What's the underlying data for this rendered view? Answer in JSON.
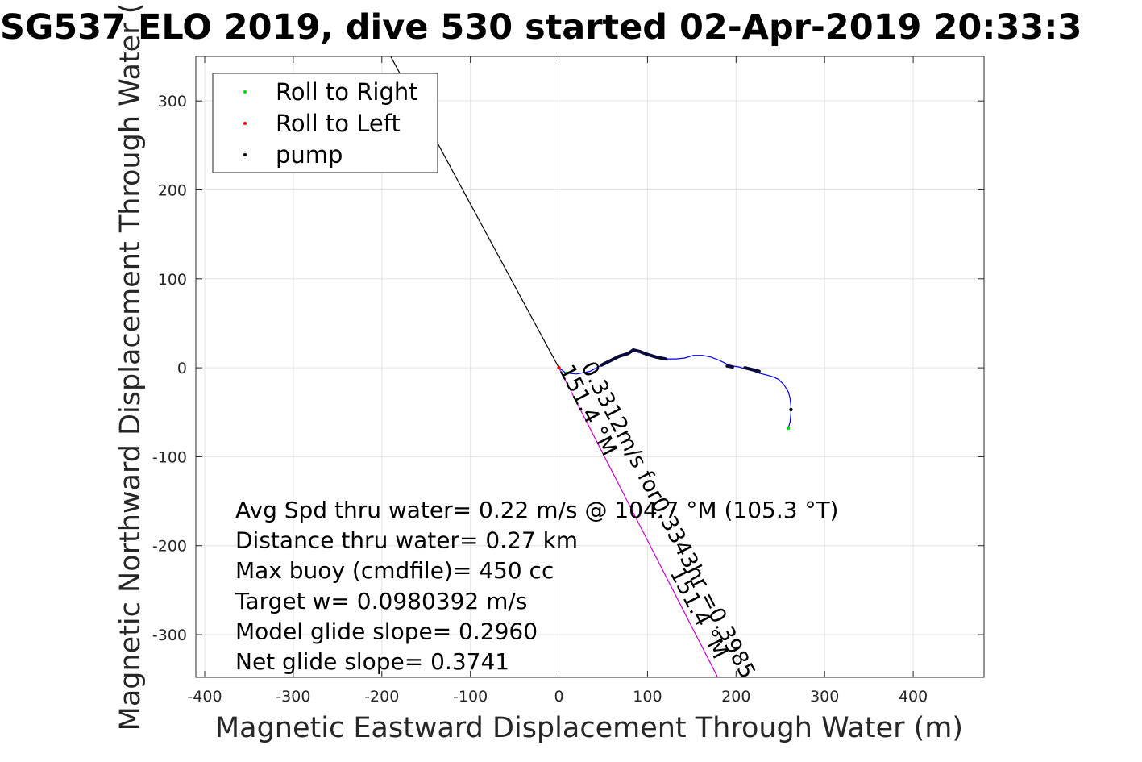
{
  "chart_data": {
    "type": "line",
    "title": "SG537 ELO 2019, dive 530 started 02-Apr-2019 20:33:3",
    "xlabel": "Magnetic Eastward Displacement Through Water (m)",
    "ylabel": "Magnetic Northward Displacement Through Water (",
    "xlim": [
      -410,
      480
    ],
    "ylim": [
      -348,
      350
    ],
    "xticks": [
      -400,
      -300,
      -200,
      -100,
      0,
      100,
      200,
      300,
      400
    ],
    "yticks": [
      -300,
      -200,
      -100,
      0,
      100,
      200,
      300
    ],
    "grid": true,
    "legend": {
      "placement": "top-left",
      "entries": [
        {
          "label": "Roll to Right",
          "color": "#00dd00"
        },
        {
          "label": "Roll to Left",
          "color": "#ff0000"
        },
        {
          "label": "pump",
          "color": "#000000"
        }
      ]
    },
    "series": [
      {
        "role": "heading-line",
        "color": "#000000",
        "x": [
          -190,
          0
        ],
        "y": [
          350,
          0
        ]
      },
      {
        "role": "track",
        "color": "#0000ff",
        "x": [
          0,
          8,
          20,
          35,
          48,
          58,
          68,
          78,
          84,
          92,
          100,
          110,
          120,
          132,
          142,
          152,
          162,
          172,
          182,
          190,
          196,
          203,
          210,
          218,
          226,
          234,
          241,
          248,
          254,
          259,
          261,
          262,
          262,
          261,
          259
        ],
        "y": [
          0,
          -6,
          -7,
          -4,
          3,
          8,
          13,
          16,
          20,
          18,
          15,
          12,
          10,
          10,
          11,
          14,
          14,
          12,
          8,
          4,
          2,
          1,
          -1,
          -3,
          -6,
          -8,
          -10,
          -13,
          -19,
          -27,
          -34,
          -43,
          -51,
          -61,
          -68
        ]
      },
      {
        "role": "current-vector",
        "color": "#cc00cc",
        "x": [
          0,
          221
        ],
        "y": [
          0,
          -429
        ]
      }
    ],
    "pump_segments": [
      {
        "x": [
          48,
          58,
          68,
          78,
          84,
          92,
          100,
          110,
          120
        ],
        "y": [
          3,
          8,
          13,
          16,
          20,
          18,
          15,
          12,
          10
        ]
      },
      {
        "x": [
          190,
          196
        ],
        "y": [
          2,
          1
        ]
      },
      {
        "x": [
          210,
          226
        ],
        "y": [
          0,
          -4
        ]
      }
    ],
    "markers": [
      {
        "series": "Roll to Right",
        "color": "#00dd00",
        "x": 9,
        "y": -6
      },
      {
        "series": "Roll to Right",
        "color": "#00dd00",
        "x": 259,
        "y": -68
      },
      {
        "series": "Roll to Left",
        "color": "#ff0000",
        "x": 0,
        "y": 0
      },
      {
        "series": "pump",
        "color": "#000000",
        "x": 262,
        "y": -47
      }
    ],
    "annotations": [
      {
        "id": "current-label-1",
        "text": "0.3312m/s for0.3343hr =0.3985",
        "x": 12,
        "y": -42,
        "rotation": 62.7
      },
      {
        "id": "current-label-2",
        "text": "151.4 °M",
        "x": 0,
        "y": -42,
        "rotation": 62.7
      },
      {
        "id": "current-label-3",
        "text": "151.4 °M",
        "x": 125,
        "y": -270,
        "rotation": 62.7
      }
    ],
    "stats": [
      "Avg Spd thru water=  0.22 m/s @ 104.7 °M (105.3 °T)",
      "Distance thru water=  0.27 km",
      "Max buoy (cmdfile)= 450 cc",
      "Target w= 0.0980392 m/s",
      "Model glide slope= 0.2960",
      "Net glide slope= 0.3741"
    ]
  }
}
